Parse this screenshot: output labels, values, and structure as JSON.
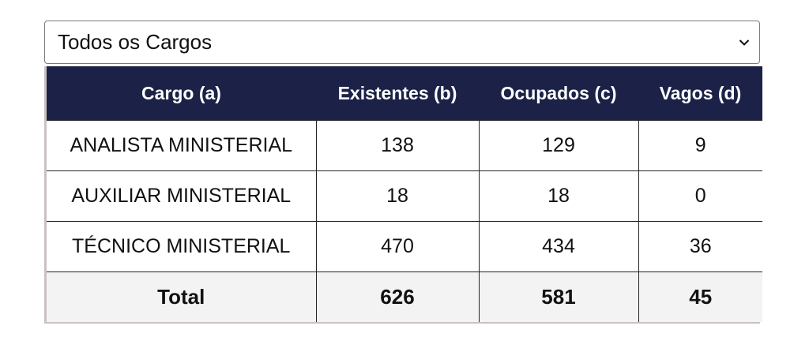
{
  "filter": {
    "selected": "Todos os Cargos",
    "icon": "chevron-down-icon"
  },
  "table": {
    "headers": [
      "Cargo (a)",
      "Existentes (b)",
      "Ocupados (c)",
      "Vagos (d)"
    ],
    "rows": [
      [
        "ANALISTA MINISTERIAL",
        "138",
        "129",
        "9"
      ],
      [
        "AUXILIAR MINISTERIAL",
        "18",
        "18",
        "0"
      ],
      [
        "TÉCNICO MINISTERIAL",
        "470",
        "434",
        "36"
      ]
    ],
    "total": [
      "Total",
      "626",
      "581",
      "45"
    ]
  },
  "colors": {
    "header_bg": "#1c2148",
    "header_text": "#ffffff",
    "total_bg": "#f3f3f3"
  }
}
